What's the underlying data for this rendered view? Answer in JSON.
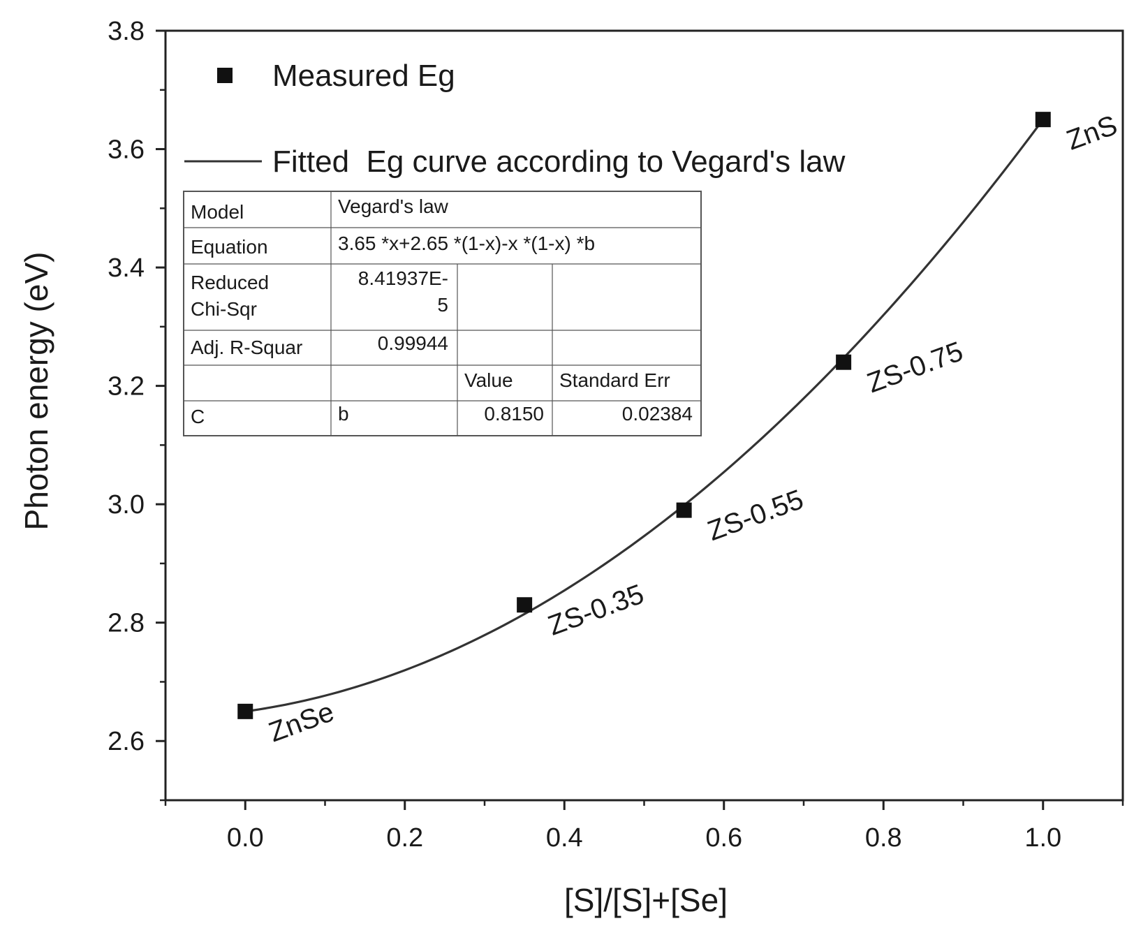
{
  "chart_data": {
    "type": "scatter",
    "xlabel": "[S]/[S]+[Se]",
    "ylabel": "Photon energy (eV)",
    "xlim": [
      -0.1,
      1.1
    ],
    "ylim": [
      2.5,
      3.8
    ],
    "xticks": [
      "0.0",
      "0.2",
      "0.4",
      "0.6",
      "0.8",
      "1.0"
    ],
    "yticks": [
      "2.6",
      "2.8",
      "3.0",
      "3.2",
      "3.4",
      "3.6",
      "3.8"
    ],
    "legend_position": "top-left",
    "colors": {
      "marker": "#111111",
      "curve": "#333333",
      "axis": "#222222",
      "table_border": "#555555"
    },
    "series": [
      {
        "name": "Measured Eg",
        "kind": "scatter",
        "marker": "square",
        "points": [
          {
            "x": 0.0,
            "y": 2.65,
            "label": "ZnSe"
          },
          {
            "x": 0.35,
            "y": 2.83,
            "label": "ZS-0.35"
          },
          {
            "x": 0.55,
            "y": 2.99,
            "label": "ZS-0.55"
          },
          {
            "x": 0.75,
            "y": 3.24,
            "label": "ZS-0.75"
          },
          {
            "x": 1.0,
            "y": 3.65,
            "label": "ZnS"
          }
        ]
      },
      {
        "name": "Fitted  Eg curve according to Vegard's law",
        "kind": "line",
        "model": {
          "eg_end": 3.65,
          "eg_start": 2.65,
          "b": 0.815
        },
        "x_range": [
          0.0,
          1.0
        ]
      }
    ],
    "fit_table": {
      "rows": [
        [
          "Model",
          "Vegard's law"
        ],
        [
          "Equation",
          "3.65 *x+2.65 *(1-x)-x *(1-x) *b"
        ],
        [
          "Reduced Chi-Sqr",
          "8.41937E-5"
        ],
        [
          "Adj. R-Squar",
          "0.99944"
        ]
      ],
      "param_header": [
        "",
        "",
        "Value",
        "Standard Err"
      ],
      "param_row": [
        "C",
        "b",
        "0.8150",
        "0.02384"
      ]
    }
  }
}
